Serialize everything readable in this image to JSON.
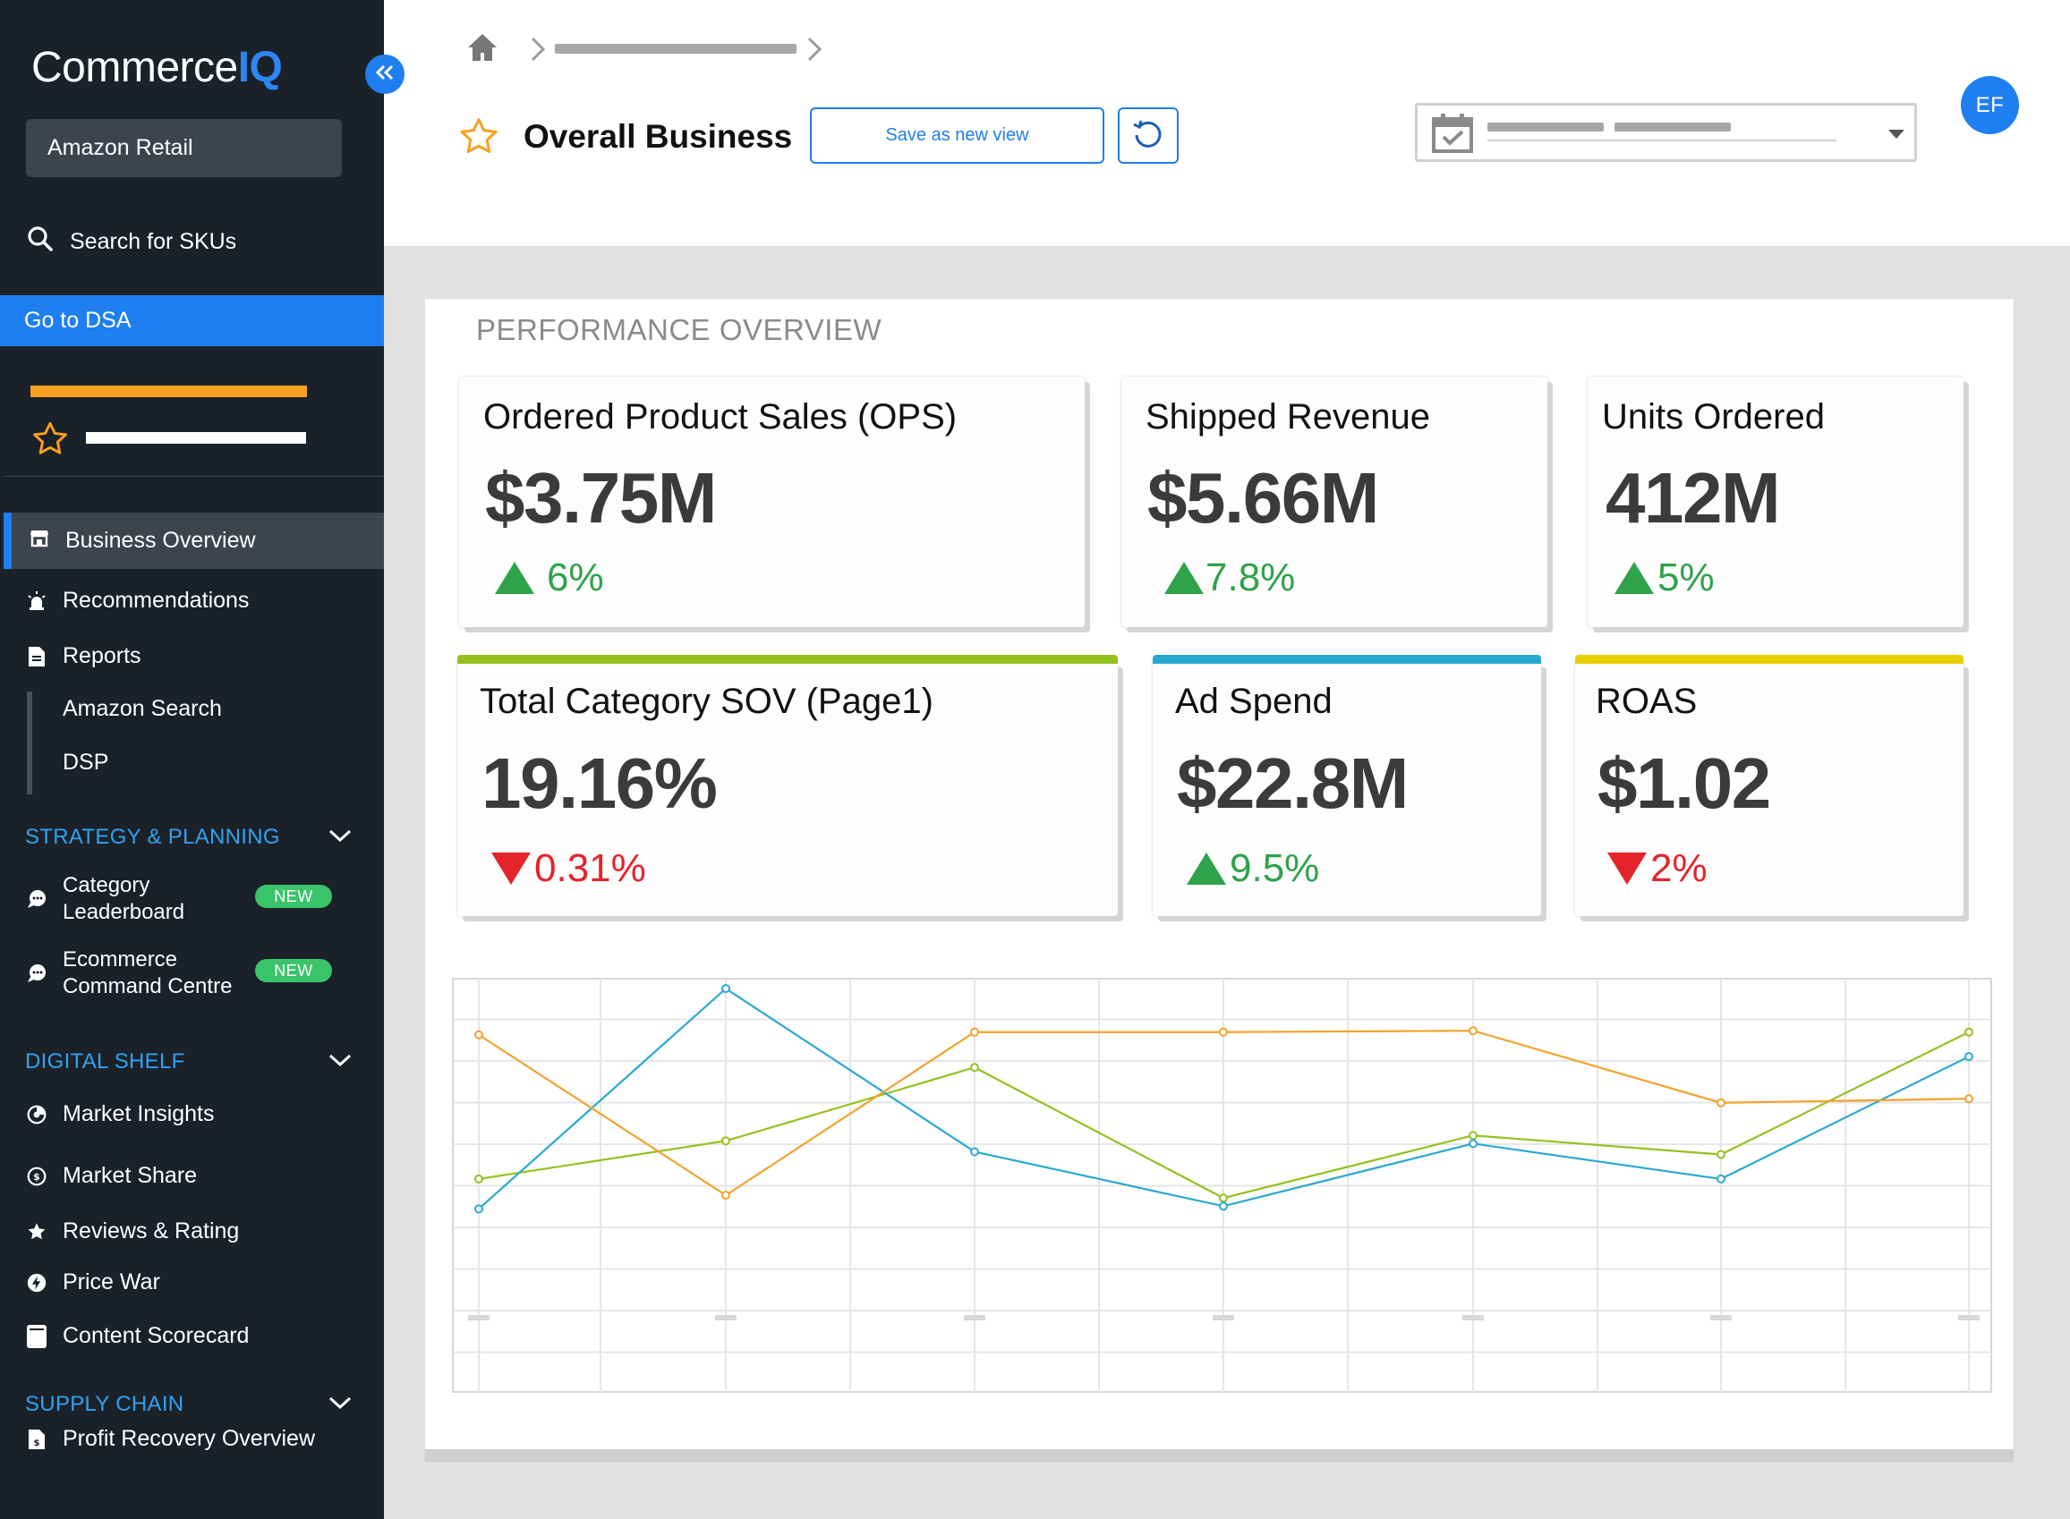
{
  "sidebar": {
    "brand_main": "Commerce",
    "brand_accent": "IQ",
    "retailer": "Amazon Retail",
    "search_label": "Search for SKUs",
    "go_dsa": "Go to DSA",
    "nav": {
      "business_overview": "Business Overview",
      "recommendations": "Recommendations",
      "reports": "Reports",
      "amazon_search": "Amazon Search",
      "dsp": "DSP"
    },
    "strategy": {
      "heading": "STRATEGY & PLANNING",
      "category_leaderboard_1": "Category",
      "category_leaderboard_2": "Leaderboard",
      "ecommerce_1": "Ecommerce",
      "ecommerce_2": "Command Centre",
      "badge": "NEW"
    },
    "digital_shelf": {
      "heading": "DIGITAL SHELF",
      "market_insights": "Market Insights",
      "market_share": "Market Share",
      "reviews": "Reviews & Rating",
      "price_war": "Price War",
      "content_scorecard": "Content Scorecard"
    },
    "supply_chain": {
      "heading": "SUPPLY CHAIN",
      "profit_recovery": "Profit Recovery Overview"
    }
  },
  "header": {
    "title": "Overall Business",
    "save_view": "Save as new view",
    "avatar": "EF"
  },
  "panel": {
    "title": "PERFORMANCE OVERVIEW"
  },
  "kpis": [
    {
      "label": "Ordered Product Sales (OPS)",
      "value": "$3.75M",
      "change": "6%",
      "direction": "up"
    },
    {
      "label": "Shipped Revenue",
      "value": "$5.66M",
      "change": "7.8%",
      "direction": "up"
    },
    {
      "label": "Units Ordered",
      "value": "412M",
      "change": "5%",
      "direction": "up"
    },
    {
      "label": "Total Category SOV (Page1)",
      "value": "19.16%",
      "change": "0.31%",
      "direction": "down",
      "accent": "#95c11f"
    },
    {
      "label": "Ad Spend",
      "value": "$22.8M",
      "change": "9.5%",
      "direction": "up",
      "accent": "#29a8d2"
    },
    {
      "label": "ROAS",
      "value": "$1.02",
      "change": "2%",
      "direction": "down",
      "accent": "#e8d000"
    }
  ],
  "chart_data": {
    "type": "line",
    "title": "",
    "xlabel": "",
    "ylabel": "",
    "x": [
      1,
      2,
      3,
      4,
      5,
      6,
      7
    ],
    "ylim": [
      0,
      100
    ],
    "grid": true,
    "series": [
      {
        "name": "Total Category SOV (Page1)",
        "color": "#95c11f",
        "values": [
          28,
          42,
          69,
          21,
          44,
          37,
          82
        ]
      },
      {
        "name": "Ad Spend",
        "color": "#29a8d2",
        "values": [
          17,
          98,
          38,
          18,
          41,
          28,
          73
        ]
      },
      {
        "name": "ROAS",
        "color": "#f2a22b",
        "values": [
          81,
          22,
          82,
          82,
          82.5,
          56,
          57.5
        ]
      }
    ]
  }
}
